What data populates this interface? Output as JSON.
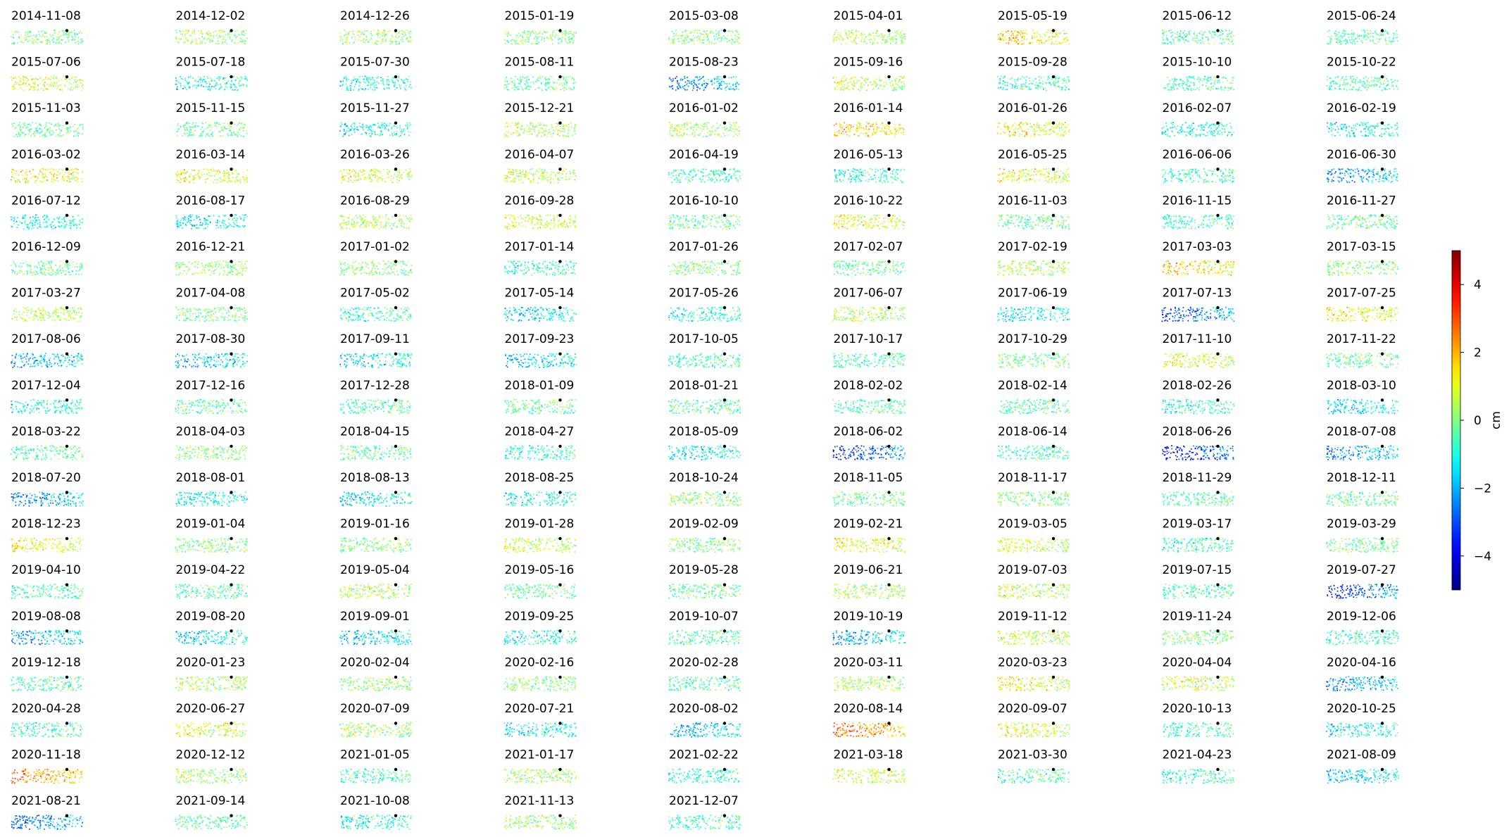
{
  "chart_data": {
    "type": "scatter",
    "panel_titles": [
      "2014-11-08",
      "2014-12-02",
      "2014-12-26",
      "2015-01-19",
      "2015-03-08",
      "2015-04-01",
      "2015-05-19",
      "2015-06-12",
      "2015-06-24",
      "2015-07-06",
      "2015-07-18",
      "2015-07-30",
      "2015-08-11",
      "2015-08-23",
      "2015-09-16",
      "2015-09-28",
      "2015-10-10",
      "2015-10-22",
      "2015-11-03",
      "2015-11-15",
      "2015-11-27",
      "2015-12-21",
      "2016-01-02",
      "2016-01-14",
      "2016-01-26",
      "2016-02-07",
      "2016-02-19",
      "2016-03-02",
      "2016-03-14",
      "2016-03-26",
      "2016-04-07",
      "2016-04-19",
      "2016-05-13",
      "2016-05-25",
      "2016-06-06",
      "2016-06-30",
      "2016-07-12",
      "2016-08-17",
      "2016-08-29",
      "2016-09-28",
      "2016-10-10",
      "2016-10-22",
      "2016-11-03",
      "2016-11-15",
      "2016-11-27",
      "2016-12-09",
      "2016-12-21",
      "2017-01-02",
      "2017-01-14",
      "2017-01-26",
      "2017-02-07",
      "2017-02-19",
      "2017-03-03",
      "2017-03-15",
      "2017-03-27",
      "2017-04-08",
      "2017-05-02",
      "2017-05-14",
      "2017-05-26",
      "2017-06-07",
      "2017-06-19",
      "2017-07-13",
      "2017-07-25",
      "2017-08-06",
      "2017-08-30",
      "2017-09-11",
      "2017-09-23",
      "2017-10-05",
      "2017-10-17",
      "2017-10-29",
      "2017-11-10",
      "2017-11-22",
      "2017-12-04",
      "2017-12-16",
      "2017-12-28",
      "2018-01-09",
      "2018-01-21",
      "2018-02-02",
      "2018-02-14",
      "2018-02-26",
      "2018-03-10",
      "2018-03-22",
      "2018-04-03",
      "2018-04-15",
      "2018-04-27",
      "2018-05-09",
      "2018-06-02",
      "2018-06-14",
      "2018-06-26",
      "2018-07-08",
      "2018-07-20",
      "2018-08-01",
      "2018-08-13",
      "2018-08-25",
      "2018-10-24",
      "2018-11-05",
      "2018-11-17",
      "2018-11-29",
      "2018-12-11",
      "2018-12-23",
      "2019-01-04",
      "2019-01-16",
      "2019-01-28",
      "2019-02-09",
      "2019-02-21",
      "2019-03-05",
      "2019-03-17",
      "2019-03-29",
      "2019-04-10",
      "2019-04-22",
      "2019-05-04",
      "2019-05-16",
      "2019-05-28",
      "2019-06-21",
      "2019-07-03",
      "2019-07-15",
      "2019-07-27",
      "2019-08-08",
      "2019-08-20",
      "2019-09-01",
      "2019-09-25",
      "2019-10-07",
      "2019-10-19",
      "2019-11-12",
      "2019-11-24",
      "2019-12-06",
      "2019-12-18",
      "2020-01-23",
      "2020-02-04",
      "2020-02-16",
      "2020-02-28",
      "2020-03-11",
      "2020-03-23",
      "2020-04-04",
      "2020-04-16",
      "2020-04-28",
      "2020-06-27",
      "2020-07-09",
      "2020-07-21",
      "2020-08-02",
      "2020-08-14",
      "2020-09-07",
      "2020-10-13",
      "2020-10-25",
      "2020-11-18",
      "2020-12-12",
      "2021-01-05",
      "2021-01-17",
      "2021-02-22",
      "2021-03-18",
      "2021-03-30",
      "2021-04-23",
      "2021-08-09",
      "2021-08-21",
      "2021-09-14",
      "2021-10-08",
      "2021-11-13",
      "2021-12-07"
    ],
    "panel_mean_cm": [
      0.0,
      0.3,
      0.2,
      0.0,
      0.1,
      0.5,
      1.5,
      -0.4,
      -0.5,
      0.8,
      -1.0,
      -1.0,
      -0.3,
      -2.0,
      0.6,
      -0.7,
      -0.4,
      -0.5,
      -0.2,
      -0.2,
      -1.0,
      0.4,
      0.3,
      1.5,
      1.2,
      -1.0,
      -1.1,
      1.2,
      1.0,
      0.8,
      0.6,
      -0.7,
      -0.8,
      1.0,
      -0.7,
      -2.0,
      -1.0,
      -1.2,
      0.5,
      0.8,
      -0.2,
      1.0,
      -0.3,
      -0.6,
      -0.2,
      -0.2,
      0.3,
      0.0,
      -0.7,
      0.0,
      -0.3,
      0.5,
      1.5,
      0.0,
      0.7,
      0.0,
      -0.6,
      -1.3,
      -1.0,
      0.5,
      -1.2,
      -2.5,
      1.2,
      -1.8,
      -1.6,
      -1.3,
      -1.5,
      -0.5,
      -0.5,
      0.0,
      0.8,
      -0.3,
      -1.0,
      -0.4,
      -0.4,
      -0.2,
      -0.4,
      -0.4,
      -0.4,
      -0.8,
      -1.3,
      -0.3,
      0.0,
      -0.3,
      -0.8,
      -1.2,
      -2.9,
      -0.6,
      -3.2,
      -2.0,
      -2.0,
      -1.2,
      -1.4,
      -1.0,
      0.2,
      -0.2,
      0.0,
      -0.4,
      -0.2,
      1.1,
      0.0,
      0.0,
      0.7,
      0.0,
      1.0,
      0.8,
      -0.6,
      -0.2,
      -0.5,
      -0.5,
      0.5,
      -0.3,
      -0.3,
      0.4,
      0.5,
      -0.5,
      -2.8,
      -1.8,
      -1.3,
      -1.6,
      -1.0,
      -0.5,
      -1.8,
      0.7,
      0.0,
      -0.8,
      -0.5,
      0.5,
      0.3,
      0.2,
      -0.4,
      0.4,
      1.0,
      0.8,
      -2.0,
      -0.7,
      1.0,
      0.3,
      -1.2,
      -1.6,
      2.3,
      1.0,
      -0.6,
      -1.0,
      2.0,
      0.3,
      -0.6,
      0.4,
      -0.8,
      0.8,
      -0.5,
      -0.7,
      -1.5,
      -2.3,
      -0.4,
      -1.0,
      0.2,
      -0.6
    ],
    "value_min": -5,
    "value_max": 5,
    "unit": "cm",
    "colormap": "jet",
    "colorbar": {
      "label": "cm",
      "ticks": [
        4,
        2,
        0,
        -2,
        -4
      ],
      "tick_labels": [
        "4",
        "2",
        "0",
        "−2",
        "−4"
      ],
      "placement": "right"
    },
    "axes_visible": false
  }
}
